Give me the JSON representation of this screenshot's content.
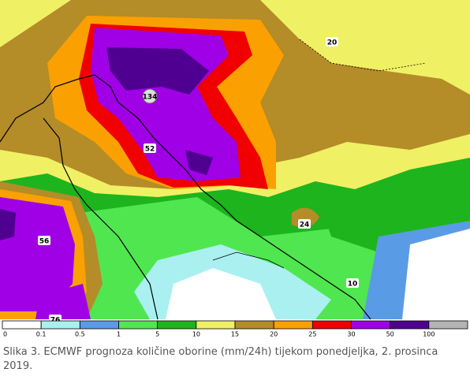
{
  "map": {
    "labels": [
      {
        "value": 20,
        "style": "box"
      },
      {
        "value": 134,
        "style": "circle"
      },
      {
        "value": 52,
        "style": "box"
      },
      {
        "value": 56,
        "style": "box"
      },
      {
        "value": 24,
        "style": "box"
      },
      {
        "value": 10,
        "style": "box"
      },
      {
        "value": 76,
        "style": "box"
      }
    ],
    "legend": [
      {
        "value": 0,
        "color": "#ffffff"
      },
      {
        "value": 0.1,
        "color": "#aaf0f0"
      },
      {
        "value": 0.5,
        "color": "#5a9be6"
      },
      {
        "value": 1,
        "color": "#50e650"
      },
      {
        "value": 5,
        "color": "#1eb41e"
      },
      {
        "value": 10,
        "color": "#f0f064"
      },
      {
        "value": 15,
        "color": "#b48c28"
      },
      {
        "value": 20,
        "color": "#faa000"
      },
      {
        "value": 25,
        "color": "#f00000"
      },
      {
        "value": 30,
        "color": "#a000e6"
      },
      {
        "value": 50,
        "color": "#500090"
      },
      {
        "value": 100,
        "color": "#b4b4b4"
      }
    ]
  },
  "caption": "Slika 3. ECMWF prognoza količine oborine (mm/24h) tijekom ponedjeljka, 2. prosinca 2019."
}
